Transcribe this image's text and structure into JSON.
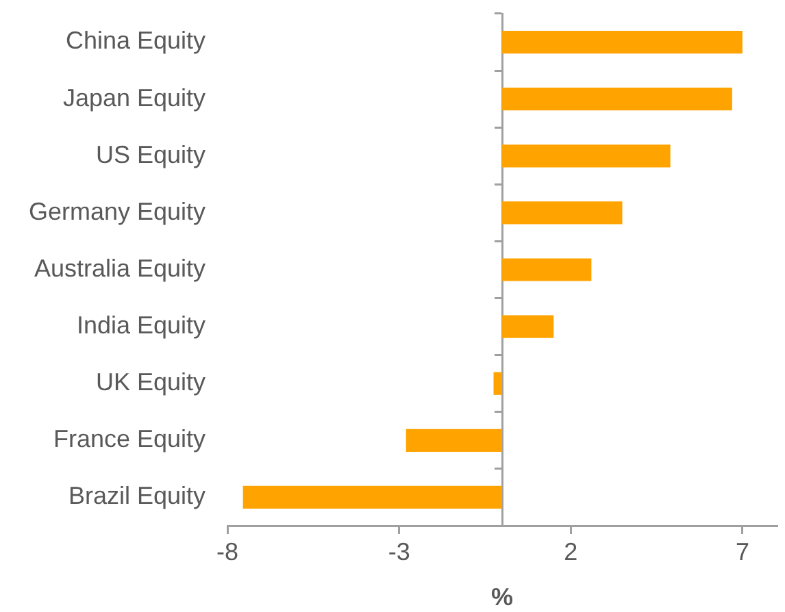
{
  "chart_data": {
    "type": "bar",
    "orientation": "horizontal",
    "categories": [
      "China Equity",
      "Japan Equity",
      "US Equity",
      "Germany Equity",
      "Australia Equity",
      "India Equity",
      "UK Equity",
      "France Equity",
      "Brazil Equity"
    ],
    "values": [
      7.0,
      6.7,
      4.9,
      3.5,
      2.6,
      1.5,
      -0.25,
      -2.8,
      -7.55
    ],
    "color": "#ffa300",
    "xlim": [
      -8,
      8
    ],
    "xticks": [
      -8,
      -3,
      2,
      7
    ],
    "xlabel": "%"
  }
}
